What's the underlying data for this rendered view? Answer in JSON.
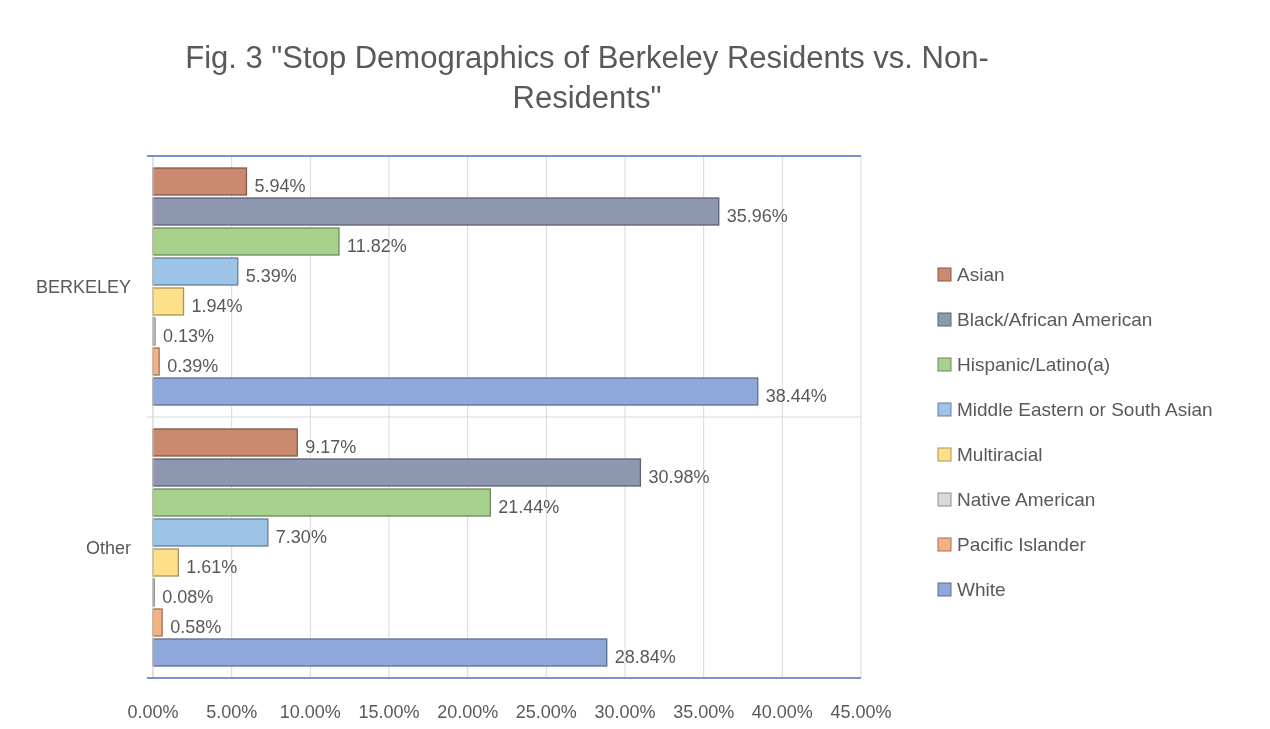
{
  "chart_data": {
    "type": "bar",
    "orientation": "horizontal",
    "title": "Fig. 3 \"Stop Demographics of Berkeley Residents vs. Non-Residents\"",
    "categories": [
      "BERKELEY",
      "Other"
    ],
    "series": [
      {
        "name": "Asian",
        "color": "#c98a6f",
        "values": [
          5.94,
          9.17
        ],
        "value_labels": [
          "5.94%",
          "9.17%"
        ]
      },
      {
        "name": "Black/African American",
        "color": "#8e97b0",
        "values": [
          35.96,
          30.98
        ],
        "value_labels": [
          "35.96%",
          "30.98%"
        ]
      },
      {
        "name": "Hispanic/Latino(a)",
        "color": "#a9d18e",
        "values": [
          11.82,
          21.44
        ],
        "value_labels": [
          "11.82%",
          "21.44%"
        ]
      },
      {
        "name": "Middle Eastern or South Asian",
        "color": "#9dc3e6",
        "values": [
          5.39,
          7.3
        ],
        "value_labels": [
          "5.39%",
          "7.30%"
        ]
      },
      {
        "name": "Multiracial",
        "color": "#ffe08a",
        "values": [
          1.94,
          1.61
        ],
        "value_labels": [
          "1.94%",
          "1.61%"
        ]
      },
      {
        "name": "Native American",
        "color": "#d9d9d9",
        "values": [
          0.13,
          0.08
        ],
        "value_labels": [
          "0.13%",
          "0.08%"
        ]
      },
      {
        "name": "Pacific Islander",
        "color": "#f4b183",
        "values": [
          0.39,
          0.58
        ],
        "value_labels": [
          "0.39%",
          "0.58%"
        ]
      },
      {
        "name": "White",
        "color": "#8fa8dc",
        "values": [
          38.44,
          28.84
        ],
        "value_labels": [
          "38.44%",
          "28.84%"
        ]
      }
    ],
    "xlim": [
      0,
      45
    ],
    "xticks": [
      {
        "value": 0,
        "label": "0.00%"
      },
      {
        "value": 5,
        "label": "5.00%"
      },
      {
        "value": 10,
        "label": "10.00%"
      },
      {
        "value": 15,
        "label": "15.00%"
      },
      {
        "value": 20,
        "label": "20.00%"
      },
      {
        "value": 25,
        "label": "25.00%"
      },
      {
        "value": 30,
        "label": "30.00%"
      },
      {
        "value": 35,
        "label": "35.00%"
      },
      {
        "value": 40,
        "label": "40.00%"
      },
      {
        "value": 45,
        "label": "45.00%"
      }
    ],
    "grid": true,
    "legend": "right"
  }
}
